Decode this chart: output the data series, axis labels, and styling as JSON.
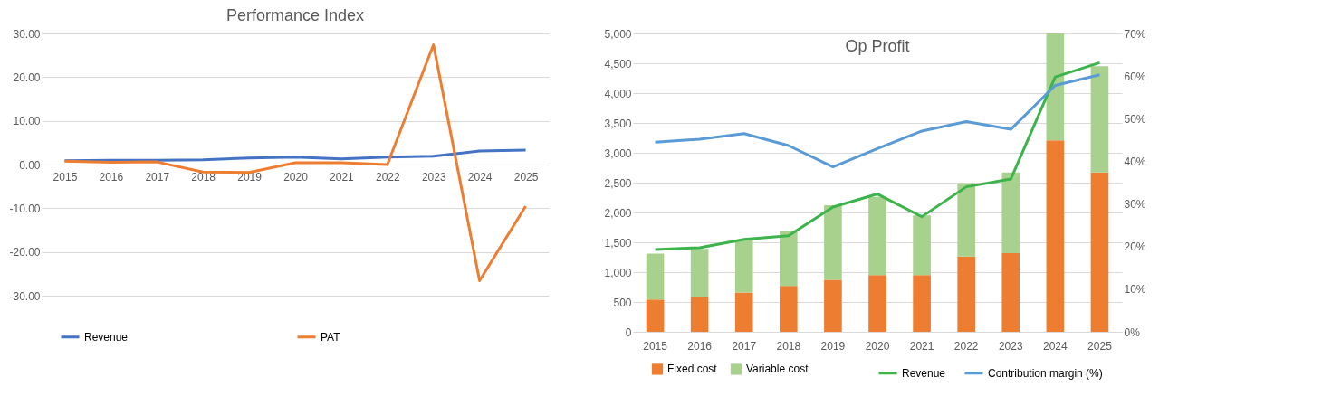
{
  "chart_data": [
    {
      "type": "line",
      "title": "Performance Index",
      "categories": [
        "2015",
        "2016",
        "2017",
        "2018",
        "2019",
        "2020",
        "2021",
        "2022",
        "2023",
        "2024",
        "2025"
      ],
      "series": [
        {
          "name": "Revenue",
          "color": "#4472c4",
          "values": [
            0.9,
            1.0,
            1.0,
            1.1,
            1.5,
            1.7,
            1.3,
            1.7,
            1.9,
            3.1,
            3.3
          ]
        },
        {
          "name": "PAT",
          "color": "#ed7d31",
          "values": [
            0.8,
            0.5,
            0.6,
            -1.7,
            -1.8,
            0.4,
            0.4,
            0.0,
            27.4,
            -26.6,
            -9.5
          ]
        }
      ],
      "ylim": [
        -30,
        30
      ],
      "yticks": [
        {
          "value": -30,
          "label": "-30.00"
        },
        {
          "value": -20,
          "label": "-20.00"
        },
        {
          "value": -10,
          "label": "-10.00"
        },
        {
          "value": 0,
          "label": "0.00"
        },
        {
          "value": 10,
          "label": "10.00"
        },
        {
          "value": 20,
          "label": "20.00"
        },
        {
          "value": 30,
          "label": "30.00"
        }
      ],
      "grid": "y",
      "legend": "bottom"
    },
    {
      "type": "bar",
      "title": "Op Profit",
      "stacked": true,
      "categories": [
        "2015",
        "2016",
        "2017",
        "2018",
        "2019",
        "2020",
        "2021",
        "2022",
        "2023",
        "2024",
        "2025"
      ],
      "series": [
        {
          "name": "Fixed cost",
          "color": "#ed7d31",
          "values": [
            540,
            590,
            660,
            770,
            870,
            950,
            950,
            1260,
            1320,
            3210,
            2670
          ]
        },
        {
          "name": "Variable cost",
          "color": "#a9d18e",
          "values": [
            770,
            800,
            880,
            910,
            1250,
            1310,
            1000,
            1230,
            1350,
            1790,
            1780
          ]
        },
        {
          "name": "Revenue",
          "type": "line",
          "color": "#3cb44b",
          "values": [
            1380,
            1410,
            1550,
            1610,
            2090,
            2310,
            1930,
            2430,
            2560,
            4270,
            4510
          ]
        },
        {
          "name": "Contribution margin (%)",
          "type": "line",
          "axis": "y2",
          "color": "#5b9bd5",
          "values": [
            44.5,
            45.2,
            46.5,
            43.7,
            38.7,
            43.0,
            47.1,
            49.3,
            47.5,
            57.8,
            60.3
          ]
        }
      ],
      "ylim": [
        0,
        5000
      ],
      "yticks": [
        0,
        500,
        {
          "value": 1000,
          "label": "1,000"
        },
        {
          "value": 1500,
          "label": "1,500"
        },
        {
          "value": 2000,
          "label": "2,000"
        },
        {
          "value": 2500,
          "label": "2,500"
        },
        {
          "value": 3000,
          "label": "3,000"
        },
        {
          "value": 3500,
          "label": "3,500"
        },
        {
          "value": 4000,
          "label": "4,000"
        },
        {
          "value": 4500,
          "label": "4,500"
        },
        {
          "value": 5000,
          "label": "5,000"
        }
      ],
      "y2lim": [
        0,
        70
      ],
      "y2ticks": [
        {
          "value": 0,
          "label": "0%"
        },
        {
          "value": 10,
          "label": "10%"
        },
        {
          "value": 20,
          "label": "20%"
        },
        {
          "value": 30,
          "label": "30%"
        },
        {
          "value": 40,
          "label": "40%"
        },
        {
          "value": 50,
          "label": "50%"
        },
        {
          "value": 60,
          "label": "60%"
        },
        {
          "value": 70,
          "label": "70%"
        }
      ],
      "grid": "y",
      "legend": "bottom"
    }
  ]
}
